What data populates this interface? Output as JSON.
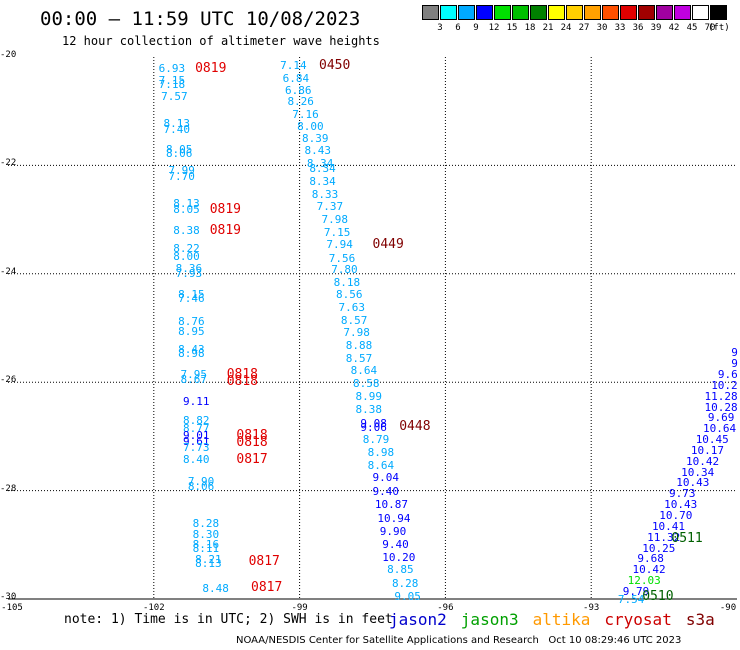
{
  "title": "00:00 – 11:59 UTC 10/08/2023",
  "subtitle": "12 hour collection of altimeter wave heights",
  "legend": {
    "swatches": [
      {
        "color": "#808080"
      },
      {
        "color": "#00ffff"
      },
      {
        "color": "#00aaff"
      },
      {
        "color": "#0000ff"
      },
      {
        "color": "#00e000"
      },
      {
        "color": "#00c000"
      },
      {
        "color": "#008000"
      },
      {
        "color": "#ffff00"
      },
      {
        "color": "#ffd000"
      },
      {
        "color": "#ffa000"
      },
      {
        "color": "#ff5000"
      },
      {
        "color": "#e00000"
      },
      {
        "color": "#a00000"
      },
      {
        "color": "#a000a0"
      },
      {
        "color": "#c000e0"
      },
      {
        "color": "#ffffff"
      },
      {
        "color": "#000000"
      }
    ],
    "labels": [
      "3",
      "6",
      "9",
      "12",
      "15",
      "18",
      "21",
      "24",
      "27",
      "30",
      "33",
      "36",
      "39",
      "42",
      "45",
      "70"
    ],
    "unit": "(ft)"
  },
  "axes": {
    "lat_labels": [
      "-20",
      "-22",
      "-24",
      "-26",
      "-28",
      "-30"
    ],
    "lat_values": [
      -20,
      -22,
      -24,
      -26,
      -28,
      -30
    ],
    "lon_labels": [
      "-105",
      "-102",
      "-99",
      "-96",
      "-93",
      "-90"
    ],
    "lon_values": [
      -105,
      -102,
      -99,
      -96,
      -93,
      -90
    ],
    "lon_range": [
      -105,
      -90
    ],
    "lat_range": [
      -30,
      -20
    ]
  },
  "observations": [
    {
      "lon": -101.9,
      "lat": -20.2,
      "v": "6.93",
      "c": "#00aaff"
    },
    {
      "lon": -101.9,
      "lat": -20.42,
      "v": "7.15",
      "c": "#00aaff"
    },
    {
      "lon": -101.9,
      "lat": -20.5,
      "v": "7.18",
      "c": "#00aaff"
    },
    {
      "lon": -101.85,
      "lat": -20.72,
      "v": "7.57",
      "c": "#00aaff"
    },
    {
      "lon": -101.8,
      "lat": -21.22,
      "v": "8.13",
      "c": "#00aaff"
    },
    {
      "lon": -101.8,
      "lat": -21.32,
      "v": "7.40",
      "c": "#00aaff"
    },
    {
      "lon": -101.75,
      "lat": -21.7,
      "v": "8.05",
      "c": "#00aaff"
    },
    {
      "lon": -101.75,
      "lat": -21.78,
      "v": "8.06",
      "c": "#00aaff"
    },
    {
      "lon": -101.7,
      "lat": -22.08,
      "v": "7.99",
      "c": "#00aaff"
    },
    {
      "lon": -101.7,
      "lat": -22.2,
      "v": "7.70",
      "c": "#00aaff"
    },
    {
      "lon": -101.6,
      "lat": -22.7,
      "v": "8.13",
      "c": "#00aaff"
    },
    {
      "lon": -101.6,
      "lat": -22.8,
      "v": "8.05",
      "c": "#00aaff"
    },
    {
      "lon": -101.6,
      "lat": -23.2,
      "v": "8.38",
      "c": "#00aaff"
    },
    {
      "lon": -101.6,
      "lat": -23.52,
      "v": "8.22",
      "c": "#00aaff"
    },
    {
      "lon": -101.6,
      "lat": -23.68,
      "v": "8.00",
      "c": "#00aaff"
    },
    {
      "lon": -101.55,
      "lat": -23.9,
      "v": "8.36",
      "c": "#00aaff"
    },
    {
      "lon": -101.55,
      "lat": -23.98,
      "v": "7.93",
      "c": "#00aaff"
    },
    {
      "lon": -101.5,
      "lat": -24.38,
      "v": "8.15",
      "c": "#00aaff"
    },
    {
      "lon": -101.5,
      "lat": -24.45,
      "v": "7.46",
      "c": "#00aaff"
    },
    {
      "lon": -101.5,
      "lat": -24.88,
      "v": "8.76",
      "c": "#00aaff"
    },
    {
      "lon": -101.5,
      "lat": -25.05,
      "v": "8.95",
      "c": "#00aaff"
    },
    {
      "lon": -101.5,
      "lat": -25.38,
      "v": "8.43",
      "c": "#00aaff"
    },
    {
      "lon": -101.5,
      "lat": -25.47,
      "v": "8.98",
      "c": "#00aaff"
    },
    {
      "lon": -101.45,
      "lat": -25.85,
      "v": "7.95",
      "c": "#00aaff"
    },
    {
      "lon": -101.45,
      "lat": -25.95,
      "v": "8.67",
      "c": "#00aaff"
    },
    {
      "lon": -101.4,
      "lat": -26.35,
      "v": "9.11",
      "c": "#0000ff"
    },
    {
      "lon": -101.4,
      "lat": -26.7,
      "v": "8.82",
      "c": "#00aaff"
    },
    {
      "lon": -101.4,
      "lat": -26.85,
      "v": "8.77",
      "c": "#00aaff"
    },
    {
      "lon": -101.4,
      "lat": -26.98,
      "v": "9.01",
      "c": "#0000ff"
    },
    {
      "lon": -101.4,
      "lat": -27.08,
      "v": "9.61",
      "c": "#0000ff"
    },
    {
      "lon": -101.4,
      "lat": -27.2,
      "v": "7.73",
      "c": "#00aaff"
    },
    {
      "lon": -101.4,
      "lat": -27.42,
      "v": "8.40",
      "c": "#00aaff"
    },
    {
      "lon": -101.3,
      "lat": -27.82,
      "v": "7.90",
      "c": "#00aaff"
    },
    {
      "lon": -101.3,
      "lat": -27.92,
      "v": "8.06",
      "c": "#00aaff"
    },
    {
      "lon": -101.2,
      "lat": -28.6,
      "v": "8.28",
      "c": "#00aaff"
    },
    {
      "lon": -101.2,
      "lat": -28.8,
      "v": "8.30",
      "c": "#00aaff"
    },
    {
      "lon": -101.2,
      "lat": -28.98,
      "v": "8.16",
      "c": "#00aaff"
    },
    {
      "lon": -101.2,
      "lat": -29.06,
      "v": "8.11",
      "c": "#00aaff"
    },
    {
      "lon": -101.15,
      "lat": -29.27,
      "v": "8.21",
      "c": "#00aaff"
    },
    {
      "lon": -101.15,
      "lat": -29.34,
      "v": "8.13",
      "c": "#00aaff"
    },
    {
      "lon": -101.0,
      "lat": -29.8,
      "v": "8.48",
      "c": "#00aaff"
    },
    {
      "lon": -99.4,
      "lat": -20.15,
      "v": "7.14",
      "c": "#00aaff"
    },
    {
      "lon": -99.35,
      "lat": -20.38,
      "v": "6.84",
      "c": "#00aaff"
    },
    {
      "lon": -99.3,
      "lat": -20.6,
      "v": "6.86",
      "c": "#00aaff"
    },
    {
      "lon": -99.25,
      "lat": -20.82,
      "v": "8.26",
      "c": "#00aaff"
    },
    {
      "lon": -99.15,
      "lat": -21.05,
      "v": "7.16",
      "c": "#00aaff"
    },
    {
      "lon": -99.05,
      "lat": -21.28,
      "v": "8.00",
      "c": "#00aaff"
    },
    {
      "lon": -98.95,
      "lat": -21.5,
      "v": "8.39",
      "c": "#00aaff"
    },
    {
      "lon": -98.9,
      "lat": -21.72,
      "v": "8.43",
      "c": "#00aaff"
    },
    {
      "lon": -98.85,
      "lat": -21.95,
      "v": "8.34",
      "c": "#00aaff"
    },
    {
      "lon": -98.8,
      "lat": -22.05,
      "v": "8.34",
      "c": "#00aaff"
    },
    {
      "lon": -98.8,
      "lat": -22.28,
      "v": "8.34",
      "c": "#00aaff"
    },
    {
      "lon": -98.75,
      "lat": -22.52,
      "v": "8.33",
      "c": "#00aaff"
    },
    {
      "lon": -98.65,
      "lat": -22.75,
      "v": "7.37",
      "c": "#00aaff"
    },
    {
      "lon": -98.55,
      "lat": -22.98,
      "v": "7.98",
      "c": "#00aaff"
    },
    {
      "lon": -98.5,
      "lat": -23.22,
      "v": "7.15",
      "c": "#00aaff"
    },
    {
      "lon": -98.45,
      "lat": -23.45,
      "v": "7.94",
      "c": "#00aaff"
    },
    {
      "lon": -98.4,
      "lat": -23.7,
      "v": "7.56",
      "c": "#00aaff"
    },
    {
      "lon": -98.35,
      "lat": -23.92,
      "v": "7.80",
      "c": "#00aaff"
    },
    {
      "lon": -98.3,
      "lat": -24.15,
      "v": "8.18",
      "c": "#00aaff"
    },
    {
      "lon": -98.25,
      "lat": -24.38,
      "v": "8.56",
      "c": "#00aaff"
    },
    {
      "lon": -98.2,
      "lat": -24.62,
      "v": "7.63",
      "c": "#00aaff"
    },
    {
      "lon": -98.15,
      "lat": -24.85,
      "v": "8.57",
      "c": "#00aaff"
    },
    {
      "lon": -98.1,
      "lat": -25.08,
      "v": "7.98",
      "c": "#00aaff"
    },
    {
      "lon": -98.05,
      "lat": -25.32,
      "v": "8.88",
      "c": "#00aaff"
    },
    {
      "lon": -98.05,
      "lat": -25.55,
      "v": "8.57",
      "c": "#00aaff"
    },
    {
      "lon": -97.95,
      "lat": -25.78,
      "v": "8.64",
      "c": "#00aaff"
    },
    {
      "lon": -97.9,
      "lat": -26.02,
      "v": "8.58",
      "c": "#00aaff"
    },
    {
      "lon": -97.85,
      "lat": -26.25,
      "v": "8.99",
      "c": "#00aaff"
    },
    {
      "lon": -97.85,
      "lat": -26.5,
      "v": "8.38",
      "c": "#00aaff"
    },
    {
      "lon": -97.75,
      "lat": -26.75,
      "v": "9.08",
      "c": "#0000ff"
    },
    {
      "lon": -97.75,
      "lat": -26.82,
      "v": "9.06",
      "c": "#0000ff"
    },
    {
      "lon": -97.7,
      "lat": -27.05,
      "v": "8.79",
      "c": "#00aaff"
    },
    {
      "lon": -97.6,
      "lat": -27.28,
      "v": "8.98",
      "c": "#00aaff"
    },
    {
      "lon": -97.6,
      "lat": -27.52,
      "v": "8.64",
      "c": "#00aaff"
    },
    {
      "lon": -97.5,
      "lat": -27.75,
      "v": "9.04",
      "c": "#0000ff"
    },
    {
      "lon": -97.5,
      "lat": -28.0,
      "v": "9.40",
      "c": "#0000ff"
    },
    {
      "lon": -97.45,
      "lat": -28.25,
      "v": "10.87",
      "c": "#0000ff"
    },
    {
      "lon": -97.4,
      "lat": -28.5,
      "v": "10.94",
      "c": "#0000ff"
    },
    {
      "lon": -97.35,
      "lat": -28.75,
      "v": "9.90",
      "c": "#0000ff"
    },
    {
      "lon": -97.3,
      "lat": -28.98,
      "v": "9.40",
      "c": "#0000ff"
    },
    {
      "lon": -97.3,
      "lat": -29.22,
      "v": "10.20",
      "c": "#0000ff"
    },
    {
      "lon": -97.2,
      "lat": -29.45,
      "v": "8.85",
      "c": "#00aaff"
    },
    {
      "lon": -97.1,
      "lat": -29.7,
      "v": "8.28",
      "c": "#00aaff"
    },
    {
      "lon": -97.05,
      "lat": -29.95,
      "v": "9.05",
      "c": "#00aaff"
    },
    {
      "lon": -90.0,
      "lat": -25.45,
      "v": "9",
      "c": "#0000ff"
    },
    {
      "lon": -90.05,
      "lat": -25.65,
      "v": "9",
      "c": "#0000ff"
    },
    {
      "lon": -90.15,
      "lat": -25.85,
      "v": "9.6",
      "c": "#0000ff"
    },
    {
      "lon": -90.3,
      "lat": -26.05,
      "v": "10.2",
      "c": "#0000ff"
    },
    {
      "lon": -90.3,
      "lat": -26.25,
      "v": "11.28",
      "c": "#0000ff"
    },
    {
      "lon": -90.45,
      "lat": -26.45,
      "v": "10.28",
      "c": "#0000ff"
    },
    {
      "lon": -90.6,
      "lat": -26.65,
      "v": "9.69",
      "c": "#0000ff"
    },
    {
      "lon": -90.7,
      "lat": -26.85,
      "v": "10.64",
      "c": "#0000ff"
    },
    {
      "lon": -90.85,
      "lat": -27.05,
      "v": "10.45",
      "c": "#0000ff"
    },
    {
      "lon": -90.95,
      "lat": -27.25,
      "v": "10.17",
      "c": "#0000ff"
    },
    {
      "lon": -91.05,
      "lat": -27.45,
      "v": "10.42",
      "c": "#0000ff"
    },
    {
      "lon": -91.15,
      "lat": -27.65,
      "v": "10.34",
      "c": "#0000ff"
    },
    {
      "lon": -91.25,
      "lat": -27.85,
      "v": "10.43",
      "c": "#0000ff"
    },
    {
      "lon": -91.4,
      "lat": -28.05,
      "v": "9.73",
      "c": "#0000ff"
    },
    {
      "lon": -91.5,
      "lat": -28.25,
      "v": "10.43",
      "c": "#0000ff"
    },
    {
      "lon": -91.6,
      "lat": -28.45,
      "v": "10.70",
      "c": "#0000ff"
    },
    {
      "lon": -91.75,
      "lat": -28.65,
      "v": "10.41",
      "c": "#0000ff"
    },
    {
      "lon": -91.85,
      "lat": -28.85,
      "v": "11.32",
      "c": "#0000ff"
    },
    {
      "lon": -91.95,
      "lat": -29.05,
      "v": "10.25",
      "c": "#0000ff"
    },
    {
      "lon": -92.05,
      "lat": -29.25,
      "v": "9.68",
      "c": "#0000ff"
    },
    {
      "lon": -92.15,
      "lat": -29.45,
      "v": "10.42",
      "c": "#0000ff"
    },
    {
      "lon": -92.25,
      "lat": -29.65,
      "v": "12.03",
      "c": "#00e000"
    },
    {
      "lon": -92.35,
      "lat": -29.85,
      "v": "9.79",
      "c": "#0000ff"
    },
    {
      "lon": -92.45,
      "lat": -30.0,
      "v": "7.54",
      "c": "#00aaff"
    }
  ],
  "pass_times": [
    {
      "lon": -101.15,
      "lat": -20.2,
      "t": "0819",
      "c": "#e00000"
    },
    {
      "lon": -98.6,
      "lat": -20.15,
      "t": "0450",
      "c": "#800000"
    },
    {
      "lon": -100.85,
      "lat": -22.8,
      "t": "0819",
      "c": "#e00000"
    },
    {
      "lon": -100.85,
      "lat": -23.2,
      "t": "0819",
      "c": "#e00000"
    },
    {
      "lon": -97.5,
      "lat": -23.45,
      "t": "0449",
      "c": "#800000"
    },
    {
      "lon": -100.5,
      "lat": -25.85,
      "t": "0818",
      "c": "#e00000"
    },
    {
      "lon": -100.5,
      "lat": -25.98,
      "t": "0818",
      "c": "#e00000"
    },
    {
      "lon": -96.95,
      "lat": -26.8,
      "t": "0448",
      "c": "#800000"
    },
    {
      "lon": -100.3,
      "lat": -26.98,
      "t": "0818",
      "c": "#e00000"
    },
    {
      "lon": -100.3,
      "lat": -27.1,
      "t": "0818",
      "c": "#e00000"
    },
    {
      "lon": -100.3,
      "lat": -27.42,
      "t": "0817",
      "c": "#e00000"
    },
    {
      "lon": -100.05,
      "lat": -29.3,
      "t": "0817",
      "c": "#e00000"
    },
    {
      "lon": -100.0,
      "lat": -29.78,
      "t": "0817",
      "c": "#e00000"
    },
    {
      "lon": -91.35,
      "lat": -28.88,
      "t": "0511",
      "c": "#006000"
    },
    {
      "lon": -91.95,
      "lat": -29.95,
      "t": "0510",
      "c": "#006000"
    }
  ],
  "note": "note: 1) Time is in UTC; 2) SWH is in feet",
  "satellites": [
    {
      "name": "jason2",
      "color": "#0000cc"
    },
    {
      "name": "jason3",
      "color": "#00a000"
    },
    {
      "name": "altika",
      "color": "#ff9900"
    },
    {
      "name": "cryosat",
      "color": "#cc0000"
    },
    {
      "name": "s3a",
      "color": "#800000"
    }
  ],
  "credit": "NOAA/NESDIS Center for Satellite Applications and Research",
  "timestamp": "Oct 10 08:29:46 UTC 2023"
}
